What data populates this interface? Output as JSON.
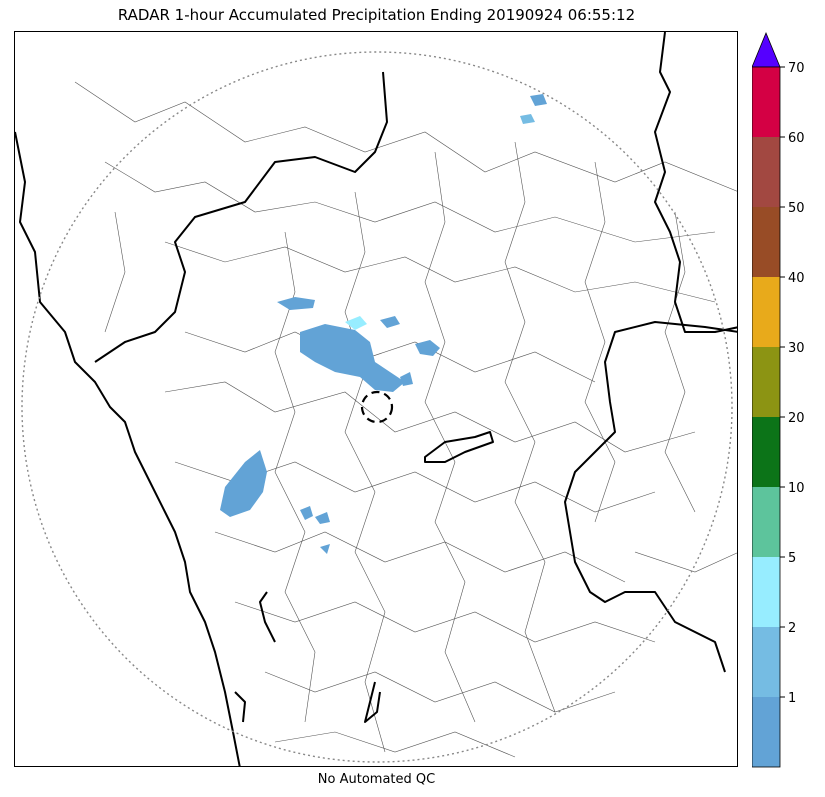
{
  "title": "RADAR 1-hour Accumulated Precipitation Ending 20190924 06:55:12",
  "caption": "No Automated QC",
  "colorbar": {
    "extend_color": "#5500ff",
    "levels": [
      {
        "label": "",
        "color": "#62a3d6"
      },
      {
        "label": "1",
        "color": "#75bce3"
      },
      {
        "label": "2",
        "color": "#97edff"
      },
      {
        "label": "5",
        "color": "#5dc49c"
      },
      {
        "label": "10",
        "color": "#0c7418"
      },
      {
        "label": "20",
        "color": "#8c9413"
      },
      {
        "label": "30",
        "color": "#e8aa1b"
      },
      {
        "label": "40",
        "color": "#984c26"
      },
      {
        "label": "50",
        "color": "#a24841"
      },
      {
        "label": "60",
        "color": "#d40044"
      }
    ],
    "top_label": "70"
  },
  "map": {
    "range_ring_color": "#888888",
    "boundary_color": "#000000",
    "district_color": "#555555",
    "echo_color": "#62a3d6",
    "echo_light_color": "#97edff"
  }
}
